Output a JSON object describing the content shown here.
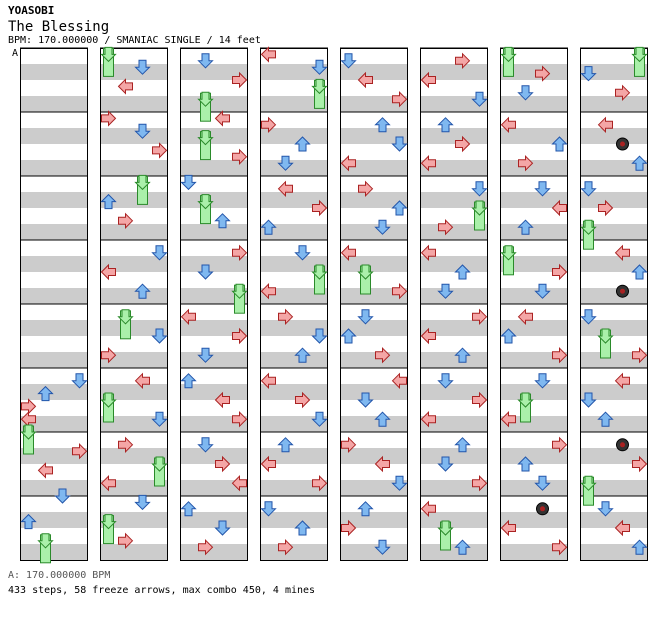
{
  "header": {
    "artist": "YOASOBI",
    "title": "The Blessing",
    "info": "BPM: 170.000000 / SMANIAC SINGLE / 14 feet"
  },
  "section_label": "A",
  "footer": {
    "bpm_line": "A: 170.000000 BPM",
    "stats_line": "433 steps, 58 freeze arrows, max combo 450, 4 mines"
  },
  "colors": {
    "left": "#f4a6a6",
    "down": "#7fb8f0",
    "up": "#a6d8f4",
    "right": "#f4a6a6",
    "freeze": "#aaf0aa",
    "stripe": "#cccccc",
    "pink": "#f4c6f4"
  },
  "chart": {
    "columns": 8,
    "measures_per_column": 8,
    "columns_notes": [
      [
        [
          5,
          0.2,
          "d",
          3
        ],
        [
          5,
          0.4,
          "u",
          1
        ],
        [
          5,
          0.6,
          "r",
          0
        ],
        [
          5,
          0.8,
          "l",
          0
        ],
        [
          6,
          0,
          "f",
          0
        ],
        [
          6,
          0.3,
          "r",
          3
        ],
        [
          6,
          0.6,
          "l",
          1
        ],
        [
          7,
          0,
          "d",
          2
        ],
        [
          7,
          0.4,
          "u",
          0
        ],
        [
          7,
          0.7,
          "f",
          1
        ],
        [
          7,
          1,
          "d",
          2
        ]
      ],
      [
        [
          0,
          0.1,
          "f",
          0
        ],
        [
          0,
          0.3,
          "d",
          2
        ],
        [
          0,
          0.6,
          "l",
          1
        ],
        [
          1,
          0.1,
          "r",
          0
        ],
        [
          1,
          0.3,
          "d",
          2
        ],
        [
          1,
          0.6,
          "r",
          3
        ],
        [
          2,
          0.1,
          "f",
          2
        ],
        [
          2,
          0.4,
          "u",
          0
        ],
        [
          2,
          0.7,
          "r",
          1
        ],
        [
          3,
          0.2,
          "d",
          3
        ],
        [
          3,
          0.5,
          "l",
          0
        ],
        [
          3,
          0.8,
          "u",
          2
        ],
        [
          4,
          0.2,
          "f",
          1
        ],
        [
          4,
          0.5,
          "d",
          3
        ],
        [
          4,
          0.8,
          "r",
          0
        ],
        [
          5,
          0.2,
          "l",
          2
        ],
        [
          5,
          0.5,
          "f",
          0
        ],
        [
          5,
          0.8,
          "d",
          3
        ],
        [
          6,
          0.2,
          "r",
          1
        ],
        [
          6,
          0.5,
          "f",
          3
        ],
        [
          6,
          0.8,
          "l",
          0
        ],
        [
          7,
          0.1,
          "d",
          2
        ],
        [
          7,
          0.4,
          "f",
          0
        ],
        [
          7,
          0.7,
          "r",
          1
        ]
      ],
      [
        [
          0,
          0.2,
          "d",
          1
        ],
        [
          0,
          0.5,
          "r",
          3
        ],
        [
          0,
          0.8,
          "f",
          1
        ],
        [
          1,
          0.1,
          "l",
          2
        ],
        [
          1,
          0.4,
          "f",
          1
        ],
        [
          1,
          0.7,
          "r",
          3
        ],
        [
          2,
          0.1,
          "d",
          0
        ],
        [
          2,
          0.4,
          "f",
          1
        ],
        [
          2,
          0.7,
          "u",
          2
        ],
        [
          3,
          0.2,
          "r",
          3
        ],
        [
          3,
          0.5,
          "d",
          1
        ],
        [
          3,
          0.8,
          "f",
          3
        ],
        [
          4,
          0.2,
          "l",
          0
        ],
        [
          4,
          0.5,
          "r",
          3
        ],
        [
          4,
          0.8,
          "d",
          1
        ],
        [
          5,
          0.2,
          "u",
          0
        ],
        [
          5,
          0.5,
          "l",
          2
        ],
        [
          5,
          0.8,
          "r",
          3
        ],
        [
          6,
          0.2,
          "d",
          1
        ],
        [
          6,
          0.5,
          "r",
          2
        ],
        [
          6,
          0.8,
          "l",
          3
        ],
        [
          7,
          0.2,
          "u",
          0
        ],
        [
          7,
          0.5,
          "d",
          2
        ],
        [
          7,
          0.8,
          "r",
          1
        ]
      ],
      [
        [
          0,
          0.1,
          "l",
          0
        ],
        [
          0,
          0.3,
          "d",
          3
        ],
        [
          0,
          0.6,
          "f",
          3
        ],
        [
          1,
          0.2,
          "r",
          0
        ],
        [
          1,
          0.5,
          "u",
          2
        ],
        [
          1,
          0.8,
          "d",
          1
        ],
        [
          2,
          0.2,
          "l",
          1
        ],
        [
          2,
          0.5,
          "r",
          3
        ],
        [
          2,
          0.8,
          "u",
          0
        ],
        [
          3,
          0.2,
          "d",
          2
        ],
        [
          3,
          0.5,
          "f",
          3
        ],
        [
          3,
          0.8,
          "l",
          0
        ],
        [
          4,
          0.2,
          "r",
          1
        ],
        [
          4,
          0.5,
          "d",
          3
        ],
        [
          4,
          0.8,
          "u",
          2
        ],
        [
          5,
          0.2,
          "l",
          0
        ],
        [
          5,
          0.5,
          "r",
          2
        ],
        [
          5,
          0.8,
          "d",
          3
        ],
        [
          6,
          0.2,
          "u",
          1
        ],
        [
          6,
          0.5,
          "l",
          0
        ],
        [
          6,
          0.8,
          "r",
          3
        ],
        [
          7,
          0.2,
          "d",
          0
        ],
        [
          7,
          0.5,
          "u",
          2
        ],
        [
          7,
          0.8,
          "r",
          1
        ]
      ],
      [
        [
          0,
          0.2,
          "d",
          0
        ],
        [
          0,
          0.5,
          "l",
          1
        ],
        [
          0,
          0.8,
          "r",
          3
        ],
        [
          1,
          0.2,
          "u",
          2
        ],
        [
          1,
          0.5,
          "d",
          3
        ],
        [
          1,
          0.8,
          "l",
          0
        ],
        [
          2,
          0.2,
          "r",
          1
        ],
        [
          2,
          0.5,
          "u",
          3
        ],
        [
          2,
          0.8,
          "d",
          2
        ],
        [
          3,
          0.2,
          "l",
          0
        ],
        [
          3,
          0.5,
          "f",
          1
        ],
        [
          3,
          0.8,
          "r",
          3
        ],
        [
          4,
          0.2,
          "d",
          1
        ],
        [
          4,
          0.5,
          "u",
          0
        ],
        [
          4,
          0.8,
          "r",
          2
        ],
        [
          5,
          0.2,
          "l",
          3
        ],
        [
          5,
          0.5,
          "d",
          1
        ],
        [
          5,
          0.8,
          "u",
          2
        ],
        [
          6,
          0.2,
          "r",
          0
        ],
        [
          6,
          0.5,
          "l",
          2
        ],
        [
          6,
          0.8,
          "d",
          3
        ],
        [
          7,
          0.2,
          "u",
          1
        ],
        [
          7,
          0.5,
          "r",
          0
        ],
        [
          7,
          0.8,
          "d",
          2
        ]
      ],
      [
        [
          0,
          0.2,
          "r",
          2
        ],
        [
          0,
          0.5,
          "l",
          0
        ],
        [
          0,
          0.8,
          "d",
          3
        ],
        [
          1,
          0.2,
          "u",
          1
        ],
        [
          1,
          0.5,
          "r",
          2
        ],
        [
          1,
          0.8,
          "l",
          0
        ],
        [
          2,
          0.2,
          "d",
          3
        ],
        [
          2,
          0.5,
          "f",
          3
        ],
        [
          2,
          0.8,
          "r",
          1
        ],
        [
          3,
          0.2,
          "l",
          0
        ],
        [
          3,
          0.5,
          "u",
          2
        ],
        [
          3,
          0.8,
          "d",
          1
        ],
        [
          4,
          0.2,
          "r",
          3
        ],
        [
          4,
          0.5,
          "l",
          0
        ],
        [
          4,
          0.8,
          "u",
          2
        ],
        [
          5,
          0.2,
          "d",
          1
        ],
        [
          5,
          0.5,
          "r",
          3
        ],
        [
          5,
          0.8,
          "l",
          0
        ],
        [
          6,
          0.2,
          "u",
          2
        ],
        [
          6,
          0.5,
          "d",
          1
        ],
        [
          6,
          0.8,
          "r",
          3
        ],
        [
          7,
          0.2,
          "l",
          0
        ],
        [
          7,
          0.5,
          "f",
          1
        ],
        [
          7,
          0.8,
          "u",
          2
        ]
      ],
      [
        [
          0,
          0.1,
          "f",
          0
        ],
        [
          0,
          0.4,
          "r",
          2
        ],
        [
          0,
          0.7,
          "d",
          1
        ],
        [
          1,
          0.2,
          "l",
          0
        ],
        [
          1,
          0.5,
          "u",
          3
        ],
        [
          1,
          0.8,
          "r",
          1
        ],
        [
          2,
          0.2,
          "d",
          2
        ],
        [
          2,
          0.5,
          "l",
          3
        ],
        [
          2,
          0.8,
          "u",
          1
        ],
        [
          3,
          0.2,
          "f",
          0
        ],
        [
          3,
          0.5,
          "r",
          3
        ],
        [
          3,
          0.8,
          "d",
          2
        ],
        [
          4,
          0.2,
          "l",
          1
        ],
        [
          4,
          0.5,
          "u",
          0
        ],
        [
          4,
          0.8,
          "r",
          3
        ],
        [
          5,
          0.2,
          "d",
          2
        ],
        [
          5,
          0.5,
          "f",
          1
        ],
        [
          5,
          0.8,
          "l",
          0
        ],
        [
          6,
          0.2,
          "r",
          3
        ],
        [
          6,
          0.5,
          "u",
          1
        ],
        [
          6,
          0.8,
          "d",
          2
        ],
        [
          7,
          0.2,
          "m",
          2
        ],
        [
          7,
          0.5,
          "l",
          0
        ],
        [
          7,
          0.8,
          "r",
          3
        ]
      ],
      [
        [
          0,
          0.1,
          "f",
          3
        ],
        [
          0,
          0.4,
          "d",
          0
        ],
        [
          0,
          0.7,
          "r",
          2
        ],
        [
          1,
          0.2,
          "l",
          1
        ],
        [
          1,
          0.5,
          "m",
          2
        ],
        [
          1,
          0.8,
          "u",
          3
        ],
        [
          2,
          0.2,
          "d",
          0
        ],
        [
          2,
          0.5,
          "r",
          1
        ],
        [
          2,
          0.8,
          "f",
          0
        ],
        [
          3,
          0.2,
          "l",
          2
        ],
        [
          3,
          0.5,
          "u",
          3
        ],
        [
          3,
          0.8,
          "m",
          2
        ],
        [
          4,
          0.2,
          "d",
          0
        ],
        [
          4,
          0.5,
          "f",
          1
        ],
        [
          4,
          0.8,
          "r",
          3
        ],
        [
          5,
          0.2,
          "l",
          2
        ],
        [
          5,
          0.5,
          "d",
          0
        ],
        [
          5,
          0.8,
          "u",
          1
        ],
        [
          6,
          0.2,
          "m",
          2
        ],
        [
          6,
          0.5,
          "r",
          3
        ],
        [
          6,
          0.8,
          "f",
          0
        ],
        [
          7,
          0.2,
          "d",
          1
        ],
        [
          7,
          0.5,
          "l",
          2
        ],
        [
          7,
          0.8,
          "u",
          3
        ]
      ]
    ]
  }
}
